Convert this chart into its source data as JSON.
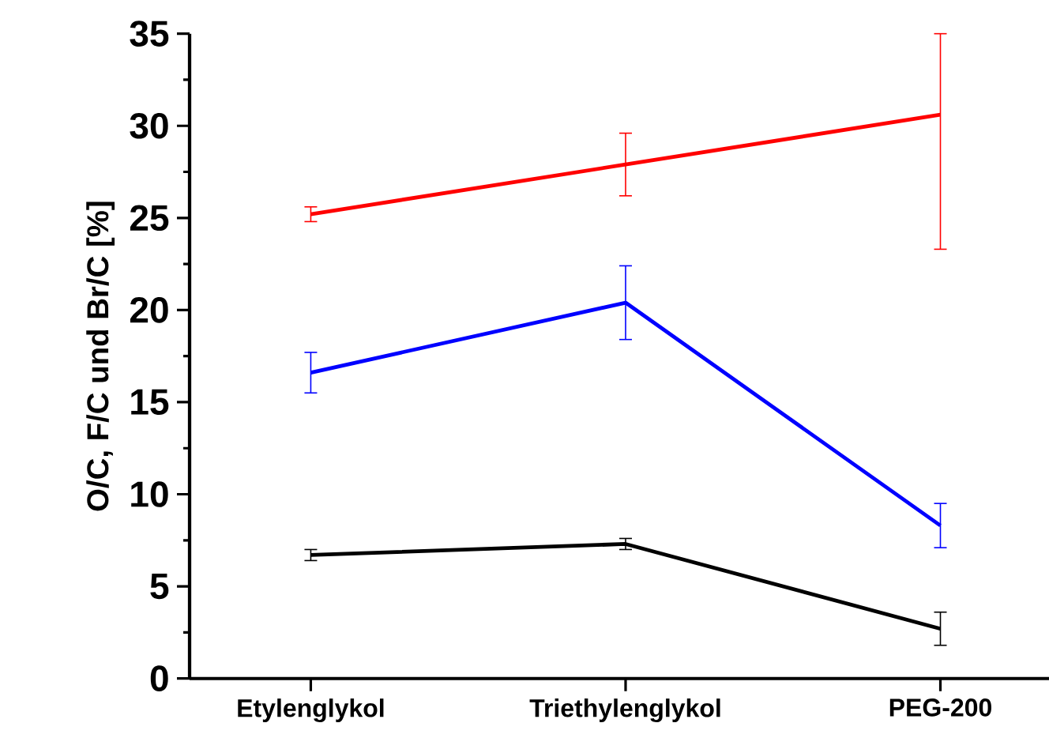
{
  "chart_data": {
    "type": "line",
    "ylabel": "O/C, F/C und Br/C [%]",
    "categories": [
      "Etylenglykol",
      "Triethylenglykol",
      "PEG-200"
    ],
    "ylim": [
      0,
      35
    ],
    "yticks": [
      0,
      5,
      10,
      15,
      20,
      25,
      30,
      35
    ],
    "marker": "none",
    "line_style": "solid",
    "series": [
      {
        "color": "#ff0000",
        "values": [
          25.2,
          27.9,
          30.6
        ],
        "errors": [
          [
            24.8,
            25.6
          ],
          [
            26.2,
            29.6
          ],
          [
            23.3,
            35.0
          ]
        ]
      },
      {
        "color": "#0000ff",
        "values": [
          16.6,
          20.4,
          8.3
        ],
        "errors": [
          [
            15.5,
            17.7
          ],
          [
            18.4,
            22.4
          ],
          [
            7.1,
            9.5
          ]
        ]
      },
      {
        "color": "#000000",
        "values": [
          6.7,
          7.3,
          2.7
        ],
        "errors": [
          [
            6.4,
            7.0
          ],
          [
            7.0,
            7.6
          ],
          [
            1.8,
            3.6
          ]
        ]
      }
    ]
  }
}
